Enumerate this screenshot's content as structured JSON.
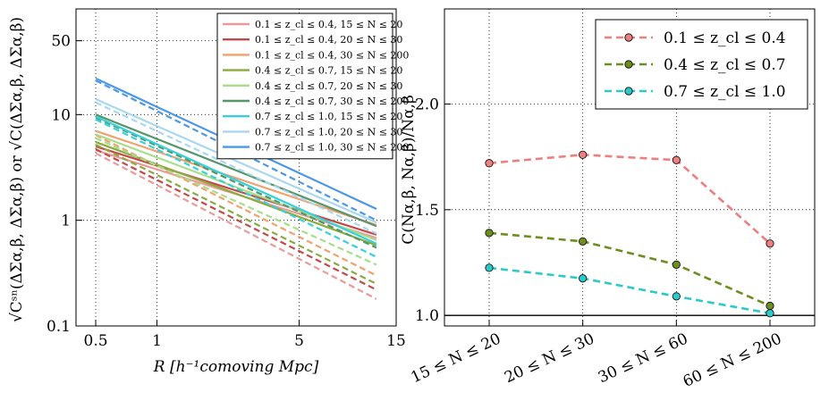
{
  "chart_data": [
    {
      "type": "line",
      "scale": "log-log",
      "xlabel": "R [h⁻¹comoving Mpc]",
      "ylabel": "√Cˢⁿ(ΔΣα,β, ΔΣα,β) or √C(ΔΣα,β, ΔΣα,β)",
      "xlim": [
        0.4,
        15
      ],
      "ylim": [
        0.1,
        100
      ],
      "x_ticks": [
        0.5,
        1,
        5,
        15
      ],
      "x_tick_labels": [
        "0.5",
        "1",
        "5",
        "15"
      ],
      "y_ticks": [
        0.1,
        1,
        10,
        50
      ],
      "y_tick_labels": [
        "0.1",
        "1",
        "10",
        "50"
      ],
      "grid": true,
      "legend_position": "top-right",
      "line_styles": {
        "solid": "total covariance",
        "dashed": "shape-noise covariance"
      },
      "series": [
        {
          "name": "0.1 ≤ z_cl ≤ 0.4, 15 ≤ N ≤ 20",
          "color": "#ec9a99",
          "solid": [
            [
              0.5,
              4.6
            ],
            [
              12,
              0.68
            ]
          ],
          "dashed": [
            [
              0.5,
              4.3
            ],
            [
              12,
              0.18
            ]
          ]
        },
        {
          "name": "0.1 ≤ z_cl ≤ 0.4, 20 ≤ N ≤ 30",
          "color": "#c4484a",
          "solid": [
            [
              0.5,
              5.0
            ],
            [
              12,
              0.73
            ]
          ],
          "dashed": [
            [
              0.5,
              4.7
            ],
            [
              12,
              0.22
            ]
          ]
        },
        {
          "name": "0.1 ≤ z_cl ≤ 0.4, 30 ≤ N ≤ 200",
          "color": "#f4a06c",
          "solid": [
            [
              0.5,
              7.0
            ],
            [
              12,
              0.9
            ]
          ],
          "dashed": [
            [
              0.5,
              6.4
            ],
            [
              12,
              0.3
            ]
          ]
        },
        {
          "name": "0.4 ≤ z_cl ≤ 0.7, 15 ≤ N ≤ 20",
          "color": "#8bab3f",
          "solid": [
            [
              0.5,
              5.5
            ],
            [
              12,
              0.58
            ]
          ],
          "dashed": [
            [
              0.5,
              5.2
            ],
            [
              12,
              0.25
            ]
          ]
        },
        {
          "name": "0.4 ≤ z_cl ≤ 0.7, 20 ≤ N ≤ 30",
          "color": "#a6de8a",
          "solid": [
            [
              0.5,
              6.5
            ],
            [
              12,
              0.65
            ]
          ],
          "dashed": [
            [
              0.5,
              6.0
            ],
            [
              12,
              0.38
            ]
          ]
        },
        {
          "name": "0.4 ≤ z_cl ≤ 0.7, 30 ≤ N ≤ 200",
          "color": "#55966a",
          "solid": [
            [
              0.5,
              10.0
            ],
            [
              12,
              0.88
            ]
          ],
          "dashed": [
            [
              0.5,
              9.4
            ],
            [
              12,
              0.55
            ]
          ]
        },
        {
          "name": "0.7 ≤ z_cl ≤ 1.0, 15 ≤ N ≤ 20",
          "color": "#36d1dc",
          "solid": [
            [
              0.5,
              9.6
            ],
            [
              12,
              0.6
            ]
          ],
          "dashed": [
            [
              0.5,
              9.0
            ],
            [
              12,
              0.45
            ]
          ]
        },
        {
          "name": "0.7 ≤ z_cl ≤ 1.0, 20 ≤ N ≤ 30",
          "color": "#a8d8ef",
          "solid": [
            [
              0.5,
              14.0
            ],
            [
              12,
              0.95
            ]
          ],
          "dashed": [
            [
              0.5,
              13.0
            ],
            [
              12,
              0.75
            ]
          ]
        },
        {
          "name": "0.7 ≤ z_cl ≤ 1.0, 30 ≤ N ≤ 200",
          "color": "#4c98e8",
          "solid": [
            [
              0.5,
              22.0
            ],
            [
              12,
              1.28
            ]
          ],
          "dashed": [
            [
              0.5,
              21.0
            ],
            [
              12,
              1.0
            ]
          ]
        }
      ]
    },
    {
      "type": "line",
      "ylabel": "C(Nα,β, Nα,β)/Nα,β",
      "categories": [
        "15 ≤ N ≤ 20",
        "20 ≤ N ≤ 30",
        "30 ≤ N ≤ 60",
        "60 ≤ N ≤ 200"
      ],
      "ylim": [
        0.95,
        2.45
      ],
      "y_ticks": [
        1.0,
        1.5,
        2.0
      ],
      "y_tick_labels": [
        "1.0",
        "1.5",
        "2.0"
      ],
      "grid": true,
      "hline": 1.0,
      "legend_position": "top-right",
      "series": [
        {
          "name": "0.1 ≤ z_cl ≤ 0.4",
          "color": "#ec7f7f",
          "values": [
            1.72,
            1.76,
            1.735,
            1.34
          ]
        },
        {
          "name": "0.4 ≤ z_cl ≤ 0.7",
          "color": "#6d8e1f",
          "values": [
            1.39,
            1.35,
            1.24,
            1.045
          ]
        },
        {
          "name": "0.7 ≤ z_cl ≤ 1.0",
          "color": "#2cc9c9",
          "values": [
            1.225,
            1.175,
            1.09,
            1.01
          ]
        }
      ]
    }
  ]
}
